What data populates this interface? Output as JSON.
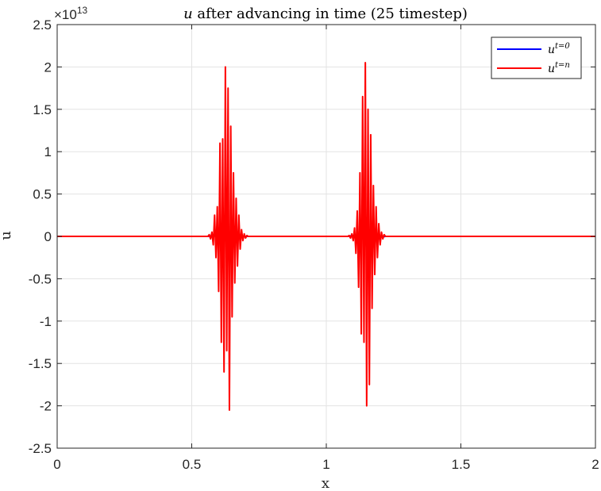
{
  "chart_data": {
    "type": "line",
    "title_var": "u",
    "title_rest": " after advancing in time (25 timestep)",
    "xlabel": "x",
    "ylabel": "u",
    "exponent": {
      "base": "×10",
      "power": "13"
    },
    "xlim": [
      0,
      2
    ],
    "ylim": [
      -2.5,
      2.5
    ],
    "x_ticks": [
      0,
      0.5,
      1,
      1.5,
      2
    ],
    "x_tick_labels": [
      "0",
      "0.5",
      "1",
      "1.5",
      "2"
    ],
    "y_ticks": [
      2.5,
      2,
      1.5,
      1,
      0.5,
      0,
      -0.5,
      -1,
      -1.5,
      -2,
      -2.5
    ],
    "y_tick_labels": [
      "2.5",
      "2",
      "1.5",
      "1",
      "0.5",
      "0",
      "-0.5",
      "-1",
      "-1.5",
      "-2",
      "-2.5"
    ],
    "grid": true,
    "legend_position": "top-right",
    "legend": [
      {
        "label_base": "u",
        "label_sup": "t=0",
        "color": "#0000ff"
      },
      {
        "label_base": "u",
        "label_sup": "t=n",
        "color": "#ff0000"
      }
    ],
    "series": [
      {
        "name": "u^{t=0}",
        "color": "#0000ff",
        "x": [
          0,
          0.56,
          0.58,
          0.6,
          0.62,
          0.64,
          0.66,
          0.68,
          0.7,
          0.72,
          1.08,
          1.1,
          1.12,
          1.14,
          1.16,
          1.18,
          1.2,
          1.22,
          2
        ],
        "y": [
          0,
          0,
          0.01,
          -0.01,
          0.01,
          -0.01,
          0.01,
          -0.01,
          0,
          0,
          0,
          0.01,
          -0.01,
          0.01,
          -0.01,
          0.01,
          -0.01,
          0,
          0
        ]
      },
      {
        "name": "u^{t=n}",
        "color": "#ff0000",
        "x": [
          0,
          0.56,
          0.565,
          0.57,
          0.575,
          0.58,
          0.585,
          0.59,
          0.595,
          0.6,
          0.605,
          0.61,
          0.615,
          0.62,
          0.625,
          0.63,
          0.635,
          0.64,
          0.645,
          0.65,
          0.655,
          0.66,
          0.665,
          0.67,
          0.675,
          0.68,
          0.685,
          0.69,
          0.695,
          0.7,
          0.705,
          0.71,
          1.08,
          1.085,
          1.09,
          1.095,
          1.1,
          1.105,
          1.11,
          1.115,
          1.12,
          1.125,
          1.13,
          1.135,
          1.14,
          1.145,
          1.15,
          1.155,
          1.16,
          1.165,
          1.17,
          1.175,
          1.18,
          1.185,
          1.19,
          1.195,
          1.2,
          1.205,
          1.21,
          1.215,
          1.22,
          1.225,
          2
        ],
        "y": [
          0,
          0,
          0.02,
          -0.03,
          0.05,
          -0.1,
          0.25,
          -0.25,
          0.35,
          -0.65,
          1.1,
          -1.25,
          1.15,
          -1.6,
          2.0,
          -1.35,
          1.75,
          -2.05,
          1.3,
          -0.95,
          0.75,
          -0.55,
          0.45,
          -0.35,
          0.25,
          -0.15,
          0.08,
          -0.05,
          0.03,
          -0.02,
          0.01,
          0,
          0,
          0.01,
          -0.02,
          0.03,
          -0.05,
          0.1,
          -0.2,
          0.3,
          -0.6,
          0.75,
          -1.15,
          1.65,
          -1.25,
          2.05,
          -2.0,
          1.5,
          -1.75,
          1.2,
          -0.85,
          0.6,
          -0.45,
          0.35,
          -0.25,
          0.15,
          -0.1,
          0.05,
          -0.03,
          0.02,
          0,
          0,
          0
        ]
      }
    ]
  }
}
